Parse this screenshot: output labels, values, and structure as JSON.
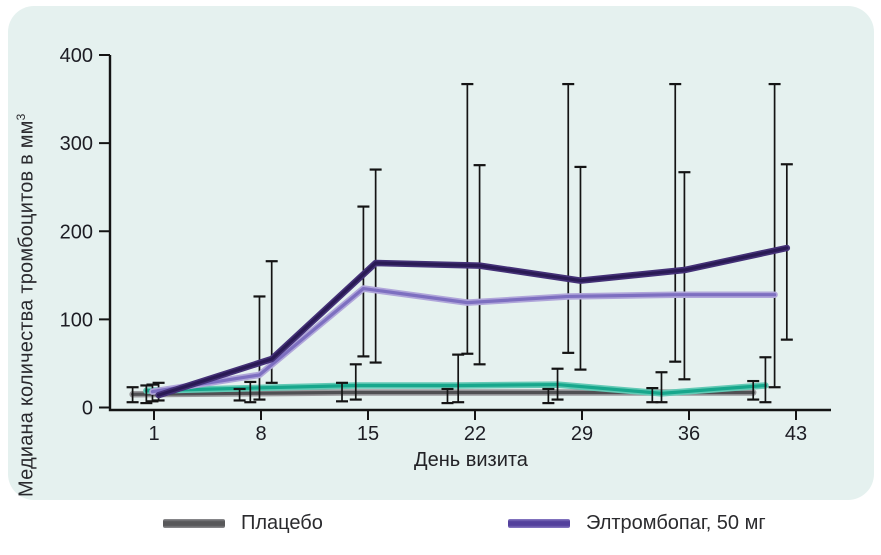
{
  "page": {
    "background": "#ffffff",
    "card_background": "#e5f1ef"
  },
  "chart_data": {
    "type": "line",
    "title": "",
    "xlabel": "День визита",
    "ylabel_main": "Медиана количества тромбоцитов в мм",
    "ylabel_sup": "3",
    "x_ticks": [
      1,
      8,
      15,
      22,
      29,
      36,
      43
    ],
    "y_ticks": [
      0,
      100,
      200,
      300,
      400
    ],
    "ylim": [
      0,
      400
    ],
    "xlim_days": [
      -1.9,
      45.3
    ],
    "grid": "off",
    "legend_position": "bottom",
    "error_bar_color": "#141414",
    "axis_color": "#141414",
    "series": [
      {
        "id": "placebo",
        "name": "Плацебо",
        "color": "#505053",
        "edge": "#9a9a9d",
        "layer": "back",
        "x": [
          -0.4,
          6.6,
          13.3,
          20.2,
          26.8,
          33.6,
          40.2
        ],
        "values": [
          15,
          16,
          17,
          17,
          17,
          17,
          17
        ],
        "err_low": [
          6,
          8,
          7,
          5,
          5,
          6,
          9
        ],
        "err_high": [
          23,
          21,
          28,
          21,
          21,
          22,
          30
        ]
      },
      {
        "id": "unlabeled-teal",
        "name": "",
        "color": "#17a78c",
        "edge": "#63c9b5",
        "layer": "back",
        "x": [
          0.5,
          7.3,
          14.2,
          20.9,
          27.4,
          34.2,
          41.0
        ],
        "values": [
          19,
          22,
          25,
          25,
          26,
          16,
          25
        ],
        "err_low": [
          5,
          6,
          9,
          6,
          9,
          6,
          6
        ],
        "err_high": [
          25,
          29,
          49,
          60,
          44,
          40,
          57
        ]
      },
      {
        "id": "eltrombopag-50",
        "name": "Элтромбопаг, 50 мг",
        "color": "#7d6fc0",
        "edge": "#b0a6da",
        "layer": "front",
        "x": [
          0.9,
          7.9,
          14.7,
          21.5,
          28.1,
          35.1,
          41.6
        ],
        "values": [
          18,
          37,
          135,
          119,
          126,
          128,
          128
        ],
        "err_low": [
          7,
          9,
          58,
          61,
          62,
          52,
          23
        ],
        "err_high": [
          26,
          126,
          228,
          367,
          367,
          367,
          367
        ]
      },
      {
        "id": "unlabeled-dark-purple",
        "name": "",
        "color": "#2a1a55",
        "edge": "#443177",
        "layer": "front",
        "x": [
          1.3,
          8.7,
          15.5,
          22.3,
          28.9,
          35.7,
          42.4
        ],
        "values": [
          14,
          55,
          164,
          161,
          144,
          156,
          181
        ],
        "err_low": [
          8,
          28,
          51,
          49,
          43,
          32,
          77
        ],
        "err_high": [
          28,
          166,
          270,
          275,
          273,
          267,
          276
        ]
      }
    ]
  },
  "legend": {
    "items": [
      {
        "label": "Плацебо",
        "color": "#58585a",
        "edge": "#8f8f92"
      },
      {
        "label": "Элтромбопаг, 50 мг",
        "color": "#53409c",
        "edge": "#8a7cc4"
      }
    ]
  }
}
